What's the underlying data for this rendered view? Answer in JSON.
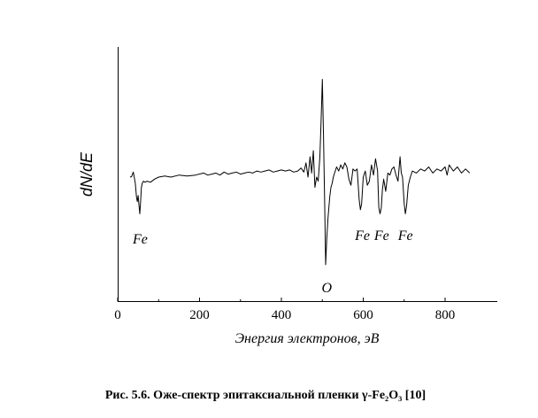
{
  "chart_data": {
    "type": "line",
    "ylabel": "dN/dE",
    "xlabel": "Энергия электронов, эВ",
    "xlim": [
      0,
      900
    ],
    "x_ticks": [
      0,
      200,
      400,
      600,
      800
    ],
    "tick_labels": [
      "0",
      "200",
      "400",
      "600",
      "800"
    ],
    "y_ticks_shown": false,
    "grid": false,
    "series": [
      {
        "x": [
          30,
          34,
          38,
          40,
          43,
          46,
          48,
          50,
          52,
          54,
          56,
          58,
          60,
          63,
          67,
          72,
          80,
          90,
          100,
          115,
          130,
          150,
          170,
          190,
          210,
          220,
          230,
          240,
          250,
          260,
          270,
          280,
          290,
          300,
          310,
          320,
          330,
          340,
          350,
          360,
          370,
          380,
          390,
          400,
          410,
          420,
          430,
          440,
          448,
          455,
          460,
          465,
          470,
          474,
          478,
          482,
          486,
          490,
          494,
          497,
          500,
          503,
          506,
          508,
          511,
          514,
          518,
          521,
          524,
          527,
          530,
          535,
          540,
          545,
          550,
          555,
          560,
          565,
          570,
          575,
          580,
          585,
          590,
          593,
          596,
          600,
          605,
          610,
          615,
          620,
          625,
          630,
          635,
          638,
          641,
          644,
          647,
          650,
          655,
          660,
          665,
          670,
          675,
          680,
          685,
          690,
          693,
          696,
          700,
          703,
          706,
          710,
          715,
          720,
          730,
          740,
          750,
          760,
          770,
          780,
          790,
          800,
          805,
          810,
          820,
          830,
          840,
          850,
          860
        ],
        "y": [
          0,
          0.2,
          2.5,
          0.5,
          -3,
          -10,
          -12,
          -9,
          -14,
          -18,
          -12,
          -5,
          -3,
          -2,
          -2.5,
          -2,
          -2.5,
          -1,
          0,
          0.5,
          0,
          1,
          0.5,
          1,
          2,
          1,
          1.5,
          2,
          1,
          2.5,
          1.5,
          2,
          2.5,
          1.5,
          2,
          2.5,
          2,
          3,
          2.5,
          3,
          3.5,
          2.5,
          3,
          3.5,
          3,
          3.5,
          2.5,
          3,
          4.5,
          2.5,
          7,
          0,
          10,
          2,
          13,
          -5,
          0,
          -2,
          10,
          28,
          48,
          20,
          -15,
          -43,
          -30,
          -20,
          -10,
          -5,
          -3,
          0,
          2,
          5,
          3,
          6,
          4,
          7,
          5,
          -1,
          -4,
          4,
          3,
          4,
          -11,
          -16,
          -13,
          0,
          3,
          -4,
          -2,
          6,
          1,
          9,
          3,
          -15,
          -18,
          -15,
          -6,
          -1,
          -7,
          2,
          1,
          4,
          5,
          1,
          -2,
          10,
          2,
          0,
          -13,
          -18,
          -14,
          -4,
          0,
          3,
          2,
          4,
          3,
          5,
          2,
          4,
          3,
          5,
          1,
          6,
          3,
          5,
          2,
          4,
          2
        ]
      }
    ],
    "annotations": [
      {
        "text": "Fe",
        "x": 55
      },
      {
        "text": "O",
        "x": 511
      },
      {
        "text": "Fe",
        "x": 598
      },
      {
        "text": "Fe",
        "x": 645
      },
      {
        "text": "Fe",
        "x": 703
      }
    ]
  },
  "caption": "Рис. 5.6. Оже-спектр эпитаксиальной пленки γ-Fe₂O₃ [10]"
}
